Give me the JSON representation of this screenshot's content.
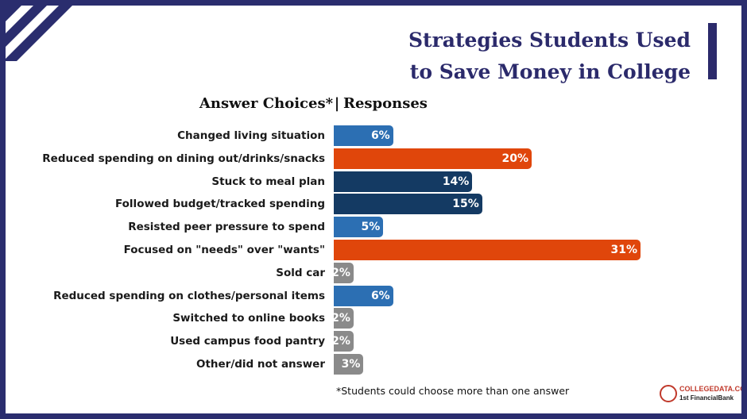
{
  "chart_data": {
    "type": "bar",
    "orientation": "horizontal",
    "title": "Strategies Students Used to Save Money in College",
    "title_lines": [
      "Strategies Students Used",
      "to Save Money in College"
    ],
    "header_left": "Answer Choices*",
    "header_sep": "|",
    "header_right": "Responses",
    "categories": [
      "Changed living situation",
      "Reduced spending on dining out/drinks/snacks",
      "Stuck to meal plan",
      "Followed budget/tracked spending",
      "Resisted peer pressure to spend",
      "Focused on \"needs\" over \"wants\"",
      "Sold car",
      "Reduced spending on clothes/personal items",
      "Switched to online books",
      "Used campus food pantry",
      "Other/did not answer"
    ],
    "values": [
      6,
      20,
      14,
      15,
      5,
      31,
      2,
      6,
      2,
      2,
      3
    ],
    "value_labels": [
      "6%",
      "20%",
      "14%",
      "15%",
      "5%",
      "31%",
      "2%",
      "6%",
      "2%",
      "2%",
      "3%"
    ],
    "bar_colors": [
      "#2c6fb3",
      "#e0460b",
      "#143a63",
      "#143a63",
      "#2c6fb3",
      "#e0460b",
      "#8a8a8a",
      "#2c6fb3",
      "#8a8a8a",
      "#8a8a8a",
      "#8a8a8a"
    ],
    "xlim": [
      0,
      31
    ],
    "footnote": "*Students could choose more than one answer"
  },
  "logo": {
    "line1": "COLLEGEDATA.COM",
    "line2": "1st FinancialBank"
  },
  "colors": {
    "frame": "#2a2d6e",
    "title": "#2b2a6b"
  }
}
